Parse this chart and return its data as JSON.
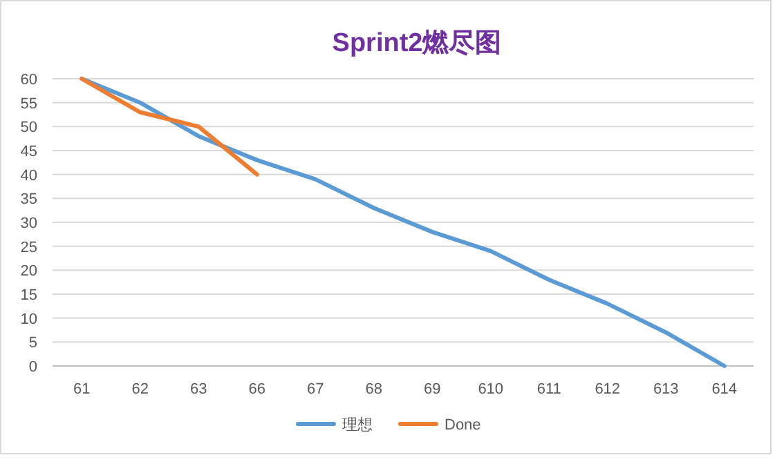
{
  "chart_data": {
    "type": "line",
    "title": "Sprint2燃尽图",
    "categories": [
      "61",
      "62",
      "63",
      "66",
      "67",
      "68",
      "69",
      "610",
      "611",
      "612",
      "613",
      "614"
    ],
    "series": [
      {
        "name": "理想",
        "color": "#5b9bd5",
        "values": [
          60,
          55,
          48,
          43,
          39,
          33,
          28,
          24,
          18,
          13,
          7,
          0
        ]
      },
      {
        "name": "Done",
        "color": "#ed7d31",
        "values": [
          60,
          53,
          50,
          40,
          null,
          null,
          null,
          null,
          null,
          null,
          null,
          null
        ]
      }
    ],
    "ylim": [
      0,
      60
    ],
    "yticks": [
      0,
      5,
      10,
      15,
      20,
      25,
      30,
      35,
      40,
      45,
      50,
      55,
      60
    ],
    "grid": "y",
    "legend": "bottom",
    "marker": "none",
    "line_style": "solid"
  }
}
